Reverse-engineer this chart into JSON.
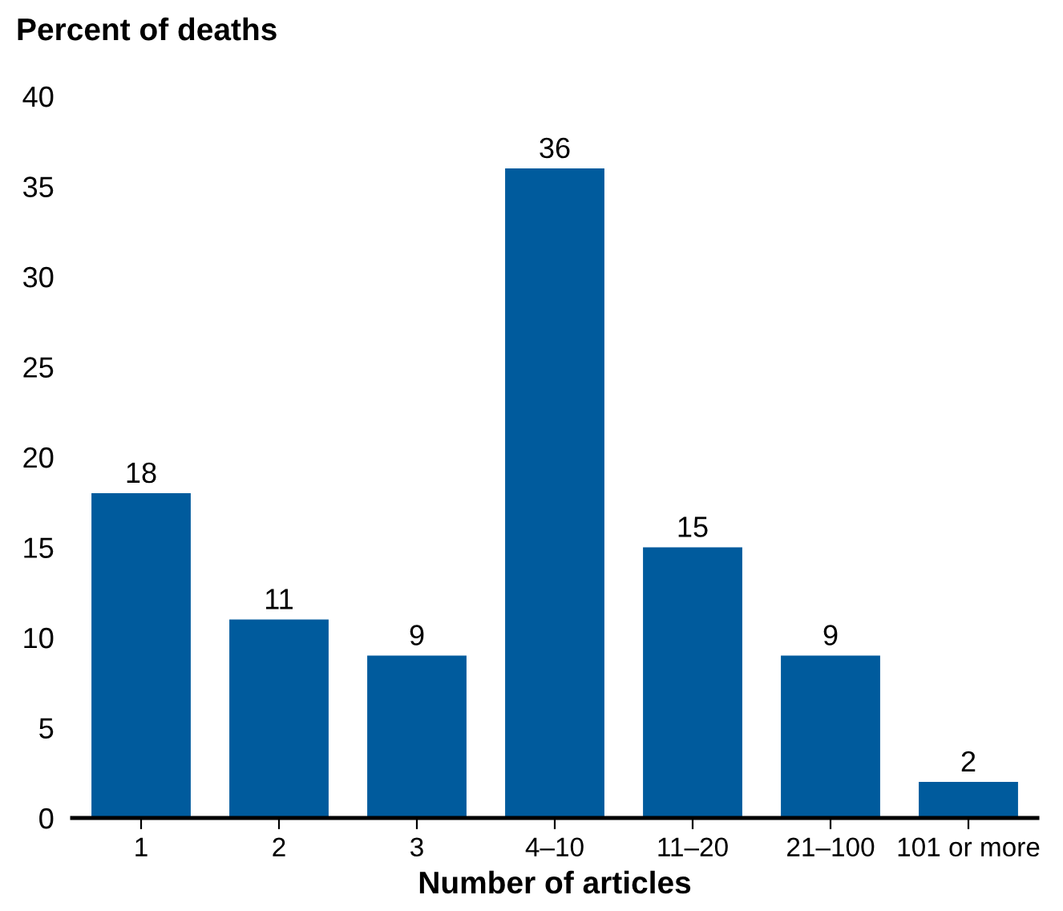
{
  "chart_data": {
    "type": "bar",
    "ylabel": "Percent of deaths",
    "xlabel": "Number of articles",
    "categories": [
      "1",
      "2",
      "3",
      "4–10",
      "11–20",
      "21–100",
      "101 or more"
    ],
    "values": [
      18,
      11,
      9,
      36,
      15,
      9,
      2
    ],
    "color": "#005b9d",
    "ylim": [
      0,
      40
    ],
    "yticks": [
      0,
      5,
      10,
      15,
      20,
      25,
      30,
      35,
      40
    ],
    "grid": false,
    "data_labels": true
  }
}
